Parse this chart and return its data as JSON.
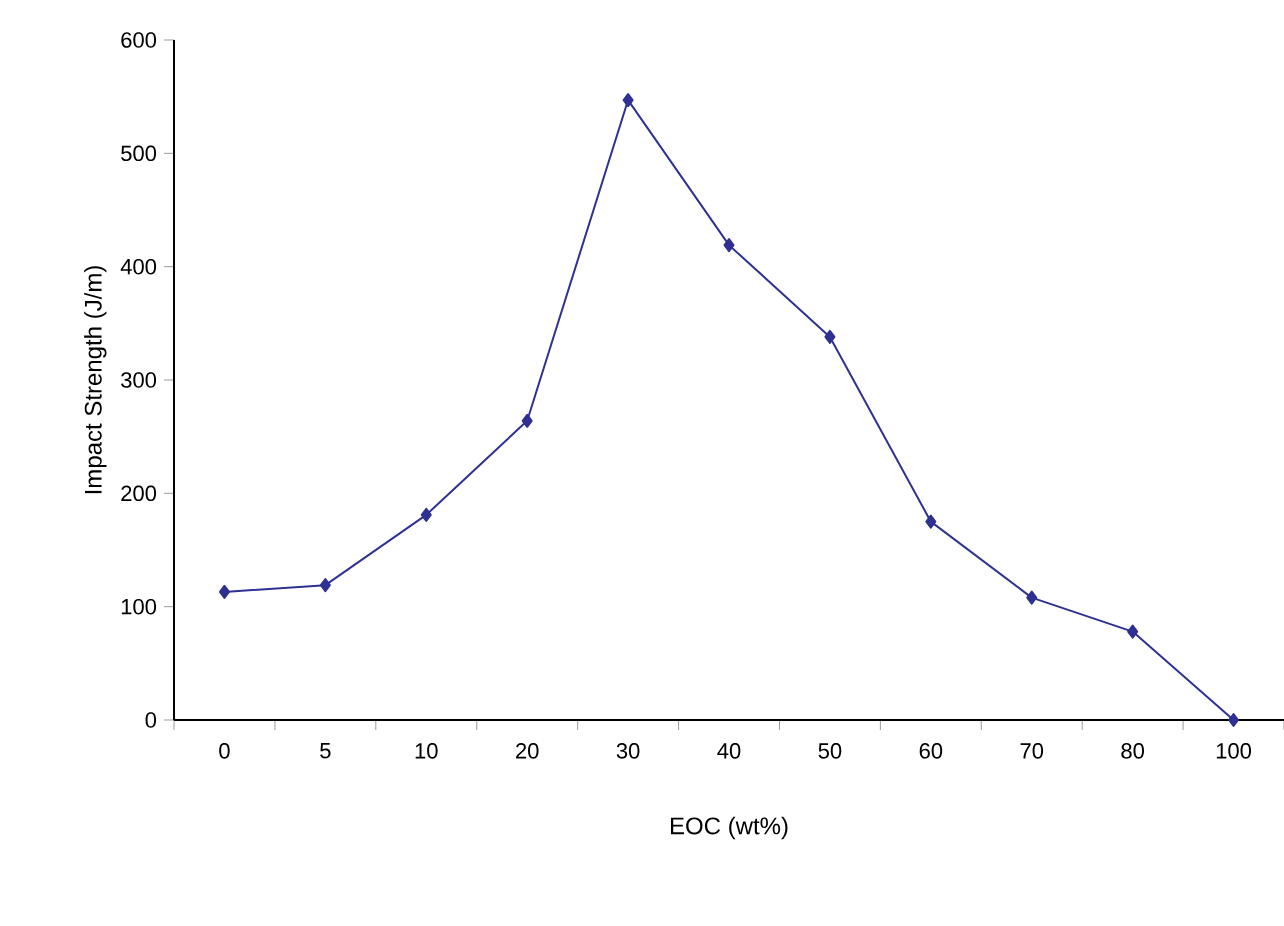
{
  "chart_data": {
    "type": "line",
    "xlabel": "EOC (wt%)",
    "ylabel": "Impact Strength (J/m)",
    "categories": [
      "0",
      "5",
      "10",
      "20",
      "30",
      "40",
      "50",
      "60",
      "70",
      "80",
      "100"
    ],
    "series": [
      {
        "color": "#2e3192",
        "values": [
          113,
          119,
          181,
          264,
          547,
          419,
          338,
          175,
          108,
          78,
          0
        ]
      }
    ],
    "ylim": [
      0,
      600
    ],
    "yticks": [
      0,
      100,
      200,
      300,
      400,
      500,
      600
    ],
    "grid": false,
    "marker": "diamond",
    "line_style": "solid"
  }
}
